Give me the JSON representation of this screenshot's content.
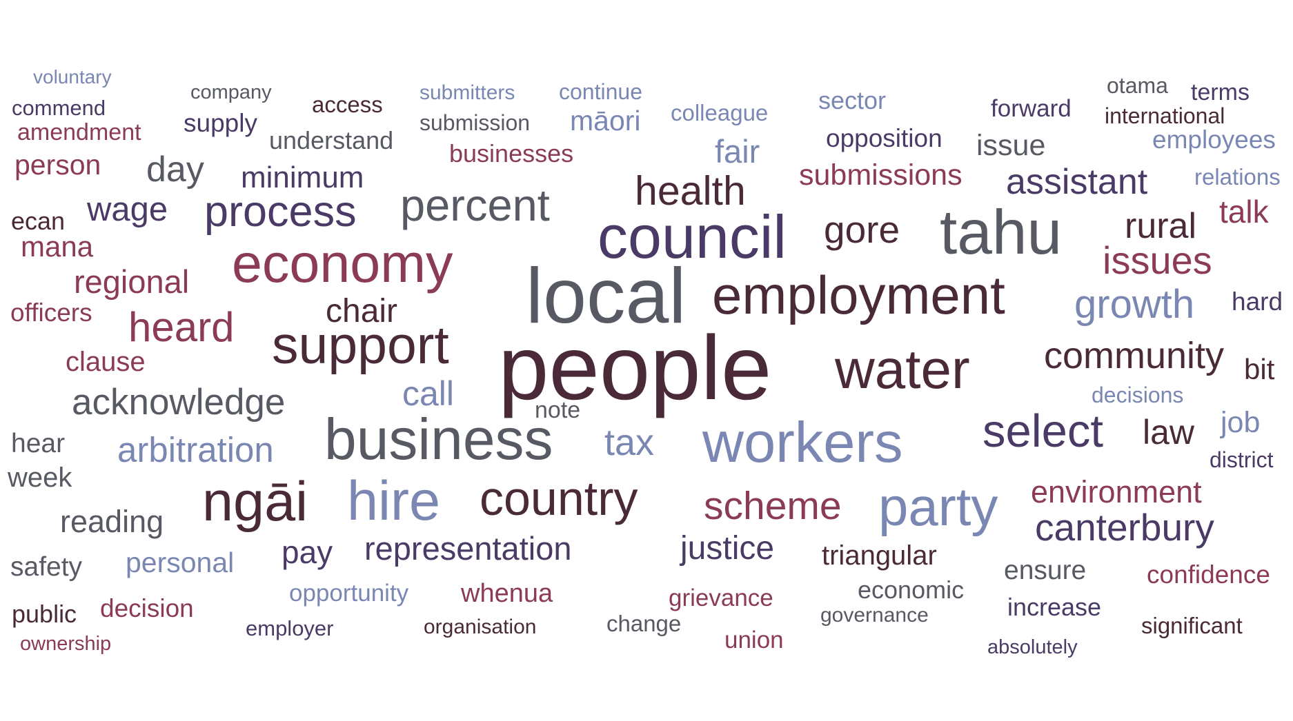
{
  "palette": {
    "c1": "#4a2a38",
    "c2": "#8b3a58",
    "c3": "#7a87b3",
    "c4": "#4a3a66",
    "c5": "#575a63"
  },
  "words": [
    {
      "text": "voluntary",
      "color": "c3"
    },
    {
      "text": "company",
      "color": "c5"
    },
    {
      "text": "access",
      "color": "c1"
    },
    {
      "text": "submitters",
      "color": "c3"
    },
    {
      "text": "continue",
      "color": "c3"
    },
    {
      "text": "sector",
      "color": "c3"
    },
    {
      "text": "otama",
      "color": "c5"
    },
    {
      "text": "terms",
      "color": "c4"
    },
    {
      "text": "commend",
      "color": "c4"
    },
    {
      "text": "colleague",
      "color": "c3"
    },
    {
      "text": "forward",
      "color": "c4"
    },
    {
      "text": "international",
      "color": "c1"
    },
    {
      "text": "supply",
      "color": "c4"
    },
    {
      "text": "submission",
      "color": "c5"
    },
    {
      "text": "māori",
      "color": "c3"
    },
    {
      "text": "amendment",
      "color": "c2"
    },
    {
      "text": "understand",
      "color": "c5"
    },
    {
      "text": "opposition",
      "color": "c4"
    },
    {
      "text": "employees",
      "color": "c3"
    },
    {
      "text": "issue",
      "color": "c5"
    },
    {
      "text": "fair",
      "color": "c3"
    },
    {
      "text": "businesses",
      "color": "c2"
    },
    {
      "text": "person",
      "color": "c2"
    },
    {
      "text": "day",
      "color": "c5"
    },
    {
      "text": "minimum",
      "color": "c4"
    },
    {
      "text": "submissions",
      "color": "c2"
    },
    {
      "text": "relations",
      "color": "c3"
    },
    {
      "text": "assistant",
      "color": "c4"
    },
    {
      "text": "health",
      "color": "c1"
    },
    {
      "text": "percent",
      "color": "c5"
    },
    {
      "text": "wage",
      "color": "c4"
    },
    {
      "text": "process",
      "color": "c4"
    },
    {
      "text": "talk",
      "color": "c2"
    },
    {
      "text": "ecan",
      "color": "c1"
    },
    {
      "text": "council",
      "color": "c4"
    },
    {
      "text": "gore",
      "color": "c1"
    },
    {
      "text": "tahu",
      "color": "c5"
    },
    {
      "text": "rural",
      "color": "c1"
    },
    {
      "text": "mana",
      "color": "c2"
    },
    {
      "text": "economy",
      "color": "c2"
    },
    {
      "text": "issues",
      "color": "c2"
    },
    {
      "text": "regional",
      "color": "c2"
    },
    {
      "text": "local",
      "color": "c5"
    },
    {
      "text": "employment",
      "color": "c1"
    },
    {
      "text": "hard",
      "color": "c4"
    },
    {
      "text": "growth",
      "color": "c3"
    },
    {
      "text": "officers",
      "color": "c2"
    },
    {
      "text": "chair",
      "color": "c1"
    },
    {
      "text": "heard",
      "color": "c2"
    },
    {
      "text": "support",
      "color": "c1"
    },
    {
      "text": "community",
      "color": "c1"
    },
    {
      "text": "clause",
      "color": "c2"
    },
    {
      "text": "bit",
      "color": "c1"
    },
    {
      "text": "people",
      "color": "c1"
    },
    {
      "text": "water",
      "color": "c1"
    },
    {
      "text": "decisions",
      "color": "c3"
    },
    {
      "text": "acknowledge",
      "color": "c5"
    },
    {
      "text": "call",
      "color": "c3"
    },
    {
      "text": "note",
      "color": "c5"
    },
    {
      "text": "job",
      "color": "c3"
    },
    {
      "text": "hear",
      "color": "c5"
    },
    {
      "text": "business",
      "color": "c5"
    },
    {
      "text": "select",
      "color": "c4"
    },
    {
      "text": "law",
      "color": "c1"
    },
    {
      "text": "arbitration",
      "color": "c3"
    },
    {
      "text": "tax",
      "color": "c3"
    },
    {
      "text": "workers",
      "color": "c3"
    },
    {
      "text": "district",
      "color": "c4"
    },
    {
      "text": "week",
      "color": "c5"
    },
    {
      "text": "environment",
      "color": "c2"
    },
    {
      "text": "ngāi",
      "color": "c1"
    },
    {
      "text": "hire",
      "color": "c3"
    },
    {
      "text": "country",
      "color": "c1"
    },
    {
      "text": "scheme",
      "color": "c2"
    },
    {
      "text": "party",
      "color": "c3"
    },
    {
      "text": "reading",
      "color": "c5"
    },
    {
      "text": "canterbury",
      "color": "c4"
    },
    {
      "text": "pay",
      "color": "c4"
    },
    {
      "text": "representation",
      "color": "c4"
    },
    {
      "text": "justice",
      "color": "c4"
    },
    {
      "text": "triangular",
      "color": "c1"
    },
    {
      "text": "safety",
      "color": "c5"
    },
    {
      "text": "personal",
      "color": "c3"
    },
    {
      "text": "ensure",
      "color": "c5"
    },
    {
      "text": "confidence",
      "color": "c2"
    },
    {
      "text": "opportunity",
      "color": "c3"
    },
    {
      "text": "whenua",
      "color": "c2"
    },
    {
      "text": "grievance",
      "color": "c2"
    },
    {
      "text": "economic",
      "color": "c5"
    },
    {
      "text": "public",
      "color": "c1"
    },
    {
      "text": "decision",
      "color": "c2"
    },
    {
      "text": "increase",
      "color": "c4"
    },
    {
      "text": "governance",
      "color": "c5"
    },
    {
      "text": "change",
      "color": "c5"
    },
    {
      "text": "employer",
      "color": "c4"
    },
    {
      "text": "organisation",
      "color": "c1"
    },
    {
      "text": "significant",
      "color": "c1"
    },
    {
      "text": "ownership",
      "color": "c2"
    },
    {
      "text": "union",
      "color": "c2"
    },
    {
      "text": "absolutely",
      "color": "c4"
    }
  ]
}
